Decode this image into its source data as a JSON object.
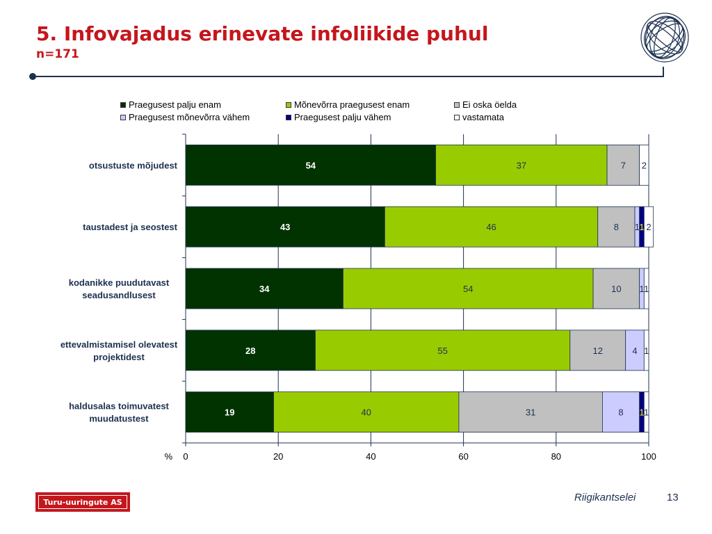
{
  "slide": {
    "title": "5. Infovajadus erinevate infoliikide puhul",
    "subtitle": "n=171",
    "footer_logo_text": "Turu-uuringute AS",
    "footer_org": "Riigikantselei",
    "page_number": "13"
  },
  "chart_data": {
    "type": "bar",
    "orientation": "horizontal",
    "stacked": true,
    "categories": [
      "otsustuste mõjudest",
      "taustadest ja seostest",
      "kodanikke puudutavast seadusandlusest",
      "ettevalmistamisel olevatest projektidest",
      "haldusalas toimuvatest muudatustest"
    ],
    "series": [
      {
        "name": "Praegusest palju enam",
        "color": "#003300",
        "label_color": "#ffffff",
        "bold": true,
        "values": [
          54,
          43,
          34,
          28,
          19
        ]
      },
      {
        "name": "Mõnevõrra praegusest enam",
        "color": "#99cc00",
        "label_color": "#1c3050",
        "bold": false,
        "values": [
          37,
          46,
          54,
          55,
          40
        ]
      },
      {
        "name": "Ei oska öelda",
        "color": "#c0c0c0",
        "label_color": "#1c3050",
        "bold": false,
        "values": [
          7,
          8,
          10,
          12,
          31
        ]
      },
      {
        "name": "Praegusest mõnevõrra vähem",
        "color": "#ccccff",
        "label_color": "#1c3050",
        "bold": false,
        "values": [
          0,
          1,
          1,
          4,
          8
        ]
      },
      {
        "name": "Praegusest palju vähem",
        "color": "#000080",
        "label_color": "#ffff00",
        "bold": false,
        "values": [
          0,
          1,
          0,
          0,
          1
        ]
      },
      {
        "name": "vastamata",
        "color": "#ffffff",
        "label_color": "#1c3050",
        "bold": false,
        "values": [
          2,
          2,
          1,
          1,
          1
        ]
      }
    ],
    "xlabel": "%",
    "xlim": [
      0,
      100
    ],
    "xticks": [
      "0",
      "20",
      "40",
      "60",
      "80",
      "100"
    ],
    "grid": true,
    "legend": "top"
  }
}
